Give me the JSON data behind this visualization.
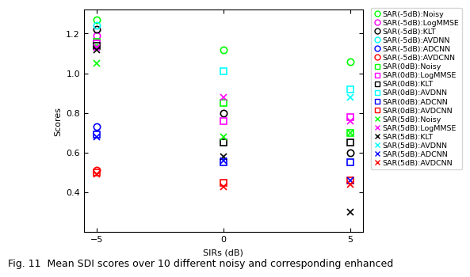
{
  "x": [
    -5,
    0,
    5
  ],
  "series": [
    {
      "label": "SAR(-5dB):Noisy",
      "color": "#00ff00",
      "marker": "o",
      "values": [
        -5,
        1.27,
        0,
        1.12,
        5,
        1.06
      ]
    },
    {
      "label": "SAR(-5dB):LogMMSE",
      "color": "#ff00ff",
      "marker": "o",
      "values": [
        -5,
        1.19
      ]
    },
    {
      "label": "SAR(-5dB):KLT",
      "color": "#000000",
      "marker": "o",
      "values": [
        -5,
        1.22,
        0,
        0.8,
        5,
        0.6
      ]
    },
    {
      "label": "SAR(-5dB):AVDNN",
      "color": "#00ffff",
      "marker": "o",
      "values": [
        -5,
        1.24
      ]
    },
    {
      "label": "SAR(-5dB):ADCNN",
      "color": "#0000ff",
      "marker": "o",
      "values": [
        -5,
        0.73
      ]
    },
    {
      "label": "SAR(-5dB):AVDCNN",
      "color": "#ff0000",
      "marker": "o",
      "values": [
        -5,
        0.51
      ]
    },
    {
      "label": "SAR(0dB):Noisy",
      "color": "#00ff00",
      "marker": "s",
      "values": [
        -5,
        1.16,
        0,
        0.85,
        5,
        0.7
      ]
    },
    {
      "label": "SAR(0dB):LogMMSE",
      "color": "#ff00ff",
      "marker": "s",
      "values": [
        -5,
        1.15,
        0,
        0.76,
        5,
        0.78
      ]
    },
    {
      "label": "SAR(0dB):KLT",
      "color": "#000000",
      "marker": "s",
      "values": [
        -5,
        1.14,
        0,
        0.65,
        5,
        0.65
      ]
    },
    {
      "label": "SAR(0dB):AVDNN",
      "color": "#00ffff",
      "marker": "s",
      "values": [
        0,
        1.01,
        5,
        0.92
      ]
    },
    {
      "label": "SAR(0dB):ADCNN",
      "color": "#0000ff",
      "marker": "s",
      "values": [
        -5,
        0.69,
        0,
        0.55,
        5,
        0.55
      ]
    },
    {
      "label": "SAR(0dB):AVDCNN",
      "color": "#ff0000",
      "marker": "s",
      "values": [
        -5,
        0.5,
        0,
        0.45,
        5,
        0.46
      ]
    },
    {
      "label": "SAR(5dB):Noisy",
      "color": "#00ff00",
      "marker": "x",
      "values": [
        -5,
        1.05,
        0,
        0.68,
        5,
        0.7
      ]
    },
    {
      "label": "SAR(5dB):LogMMSE",
      "color": "#ff00ff",
      "marker": "x",
      "values": [
        -5,
        1.13,
        0,
        0.88,
        5,
        0.76
      ]
    },
    {
      "label": "SAR(5dB):KLT",
      "color": "#000000",
      "marker": "x",
      "values": [
        -5,
        1.12,
        0,
        0.58,
        5,
        0.3
      ]
    },
    {
      "label": "SAR(5dB):AVDNN",
      "color": "#00ffff",
      "marker": "x",
      "values": [
        5,
        0.88
      ]
    },
    {
      "label": "SAR(5dB):ADCNN",
      "color": "#0000ff",
      "marker": "x",
      "values": [
        -5,
        0.68,
        0,
        0.56,
        5,
        0.46
      ]
    },
    {
      "label": "SAR(5dB):AVDCNN",
      "color": "#ff0000",
      "marker": "x",
      "values": [
        -5,
        0.49,
        0,
        0.43,
        5,
        0.44
      ]
    }
  ],
  "xlabel": "SIRs (dB)",
  "ylabel": "Scores",
  "ylim": [
    0.2,
    1.32
  ],
  "yticks": [
    0.4,
    0.6,
    0.8,
    1.0,
    1.2
  ],
  "xticks": [
    -5,
    0,
    5
  ],
  "caption": "Fig. 11  Mean SDI scores over 10 different noisy and corresponding enhanced",
  "fig_width": 6.4,
  "fig_height": 3.6,
  "axis_fontsize": 8,
  "legend_fontsize": 6.8,
  "caption_fontsize": 9,
  "marker_size": 6,
  "legend_marker_size": 5
}
